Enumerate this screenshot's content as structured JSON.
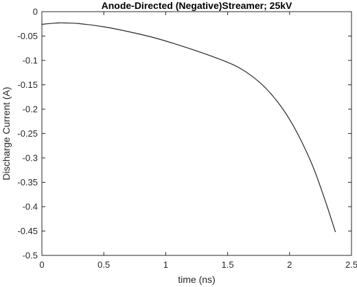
{
  "chart_data": {
    "type": "line",
    "title": "Anode-Directed (Negative)Streamer; 25kV",
    "xlabel": "time (ns)",
    "ylabel": "Discharge Current (A)",
    "xlim": [
      0,
      2.5
    ],
    "ylim": [
      -0.5,
      0
    ],
    "xticks": [
      0,
      0.5,
      1,
      1.5,
      2,
      2.5
    ],
    "xtick_labels": [
      "0",
      "0.5",
      "1",
      "1.5",
      "2",
      "2.5"
    ],
    "yticks": [
      0,
      -0.05,
      -0.1,
      -0.15,
      -0.2,
      -0.25,
      -0.3,
      -0.35,
      -0.4,
      -0.45,
      -0.5
    ],
    "ytick_labels": [
      "0",
      "-0.05",
      "-0.1",
      "-0.15",
      "-0.2",
      "-0.25",
      "-0.3",
      "-0.35",
      "-0.4",
      "-0.45",
      "-0.5"
    ],
    "grid": false,
    "box": true,
    "line_color": "#262626",
    "series": [
      {
        "x": [
          0,
          0.1,
          0.15,
          0.2,
          0.3,
          0.5,
          0.7,
          0.9,
          1.1,
          1.3,
          1.5,
          1.6,
          1.7,
          1.8,
          1.9,
          2.0,
          2.1,
          2.2,
          2.3,
          2.37
        ],
        "values": [
          -0.026,
          -0.0235,
          -0.023,
          -0.0232,
          -0.0245,
          -0.031,
          -0.041,
          -0.053,
          -0.068,
          -0.085,
          -0.104,
          -0.116,
          -0.133,
          -0.155,
          -0.184,
          -0.221,
          -0.268,
          -0.325,
          -0.397,
          -0.452
        ]
      }
    ]
  }
}
